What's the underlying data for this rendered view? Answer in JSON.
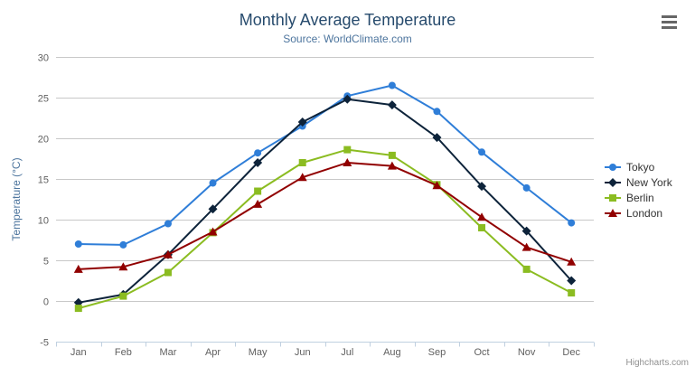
{
  "header": {
    "title": "Monthly Average Temperature",
    "subtitle": "Source: WorldClimate.com"
  },
  "icons": {
    "context_menu": "hamburger-menu-icon"
  },
  "credit": "Highcharts.com",
  "colors": {
    "title": "#274b6d",
    "subtitle": "#4d759e",
    "axis_labels": "#606060",
    "axis_title": "#4d759e",
    "grid_line": "#c8c8c8",
    "axis_line": "#c0d0e0",
    "legend_text": "#333333",
    "credit_text": "#909090"
  },
  "chart_data": {
    "type": "line",
    "title": "Monthly Average Temperature",
    "subtitle": "Source: WorldClimate.com",
    "categories": [
      "Jan",
      "Feb",
      "Mar",
      "Apr",
      "May",
      "Jun",
      "Jul",
      "Aug",
      "Sep",
      "Oct",
      "Nov",
      "Dec"
    ],
    "xlabel": "",
    "ylabel": "Temperature (°C)",
    "ylim": [
      -5,
      30
    ],
    "ytick_step": 5,
    "grid": true,
    "legend_position": "right",
    "series": [
      {
        "name": "Tokyo",
        "color": "#2f7ed8",
        "marker": "circle",
        "values": [
          7.0,
          6.9,
          9.5,
          14.5,
          18.2,
          21.5,
          25.2,
          26.5,
          23.3,
          18.3,
          13.9,
          9.6
        ]
      },
      {
        "name": "New York",
        "color": "#0d233a",
        "marker": "diamond",
        "values": [
          -0.2,
          0.8,
          5.7,
          11.3,
          17.0,
          22.0,
          24.8,
          24.1,
          20.1,
          14.1,
          8.6,
          2.5
        ]
      },
      {
        "name": "Berlin",
        "color": "#8bbc21",
        "marker": "square",
        "values": [
          -0.9,
          0.6,
          3.5,
          8.4,
          13.5,
          17.0,
          18.6,
          17.9,
          14.3,
          9.0,
          3.9,
          1.0
        ]
      },
      {
        "name": "London",
        "color": "#910000",
        "marker": "triangle",
        "values": [
          3.9,
          4.2,
          5.7,
          8.5,
          11.9,
          15.2,
          17.0,
          16.6,
          14.2,
          10.3,
          6.6,
          4.8
        ]
      }
    ]
  }
}
